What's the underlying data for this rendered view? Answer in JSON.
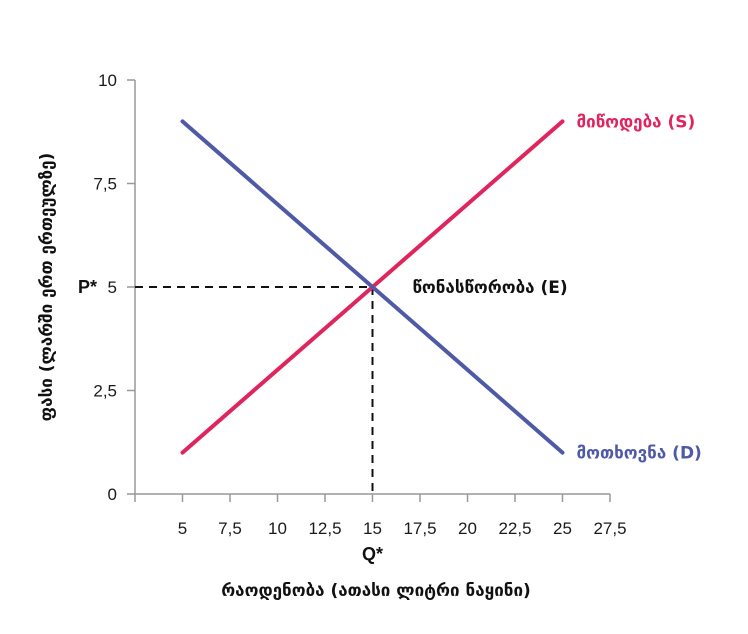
{
  "chart_data": {
    "type": "line",
    "xlabel": "რაოდენობა (ათასი ლიტრი ნაყინი)",
    "ylabel": "ფასი (ლარში ერთ ერთეულზე)",
    "xlim": [
      2.5,
      27.5
    ],
    "ylim": [
      0,
      10
    ],
    "x_ticks": [
      "5",
      "7,5",
      "10",
      "12,5",
      "15",
      "17,5",
      "20",
      "22,5",
      "25",
      "27,5"
    ],
    "y_ticks": [
      "0",
      "2,5",
      "5",
      "7,5",
      "10"
    ],
    "series": [
      {
        "name": "მიწოდება (S)",
        "color": "#e0245e",
        "x": [
          5,
          25
        ],
        "y": [
          1,
          9
        ]
      },
      {
        "name": "მოთხოვნა (D)",
        "color": "#4f5aa6",
        "x": [
          5,
          25
        ],
        "y": [
          9,
          1
        ]
      }
    ],
    "equilibrium": {
      "label": "წონასწორობა (E)",
      "x": 15,
      "y": 5,
      "p_label": "P*",
      "q_label": "Q*"
    },
    "grid": false
  }
}
